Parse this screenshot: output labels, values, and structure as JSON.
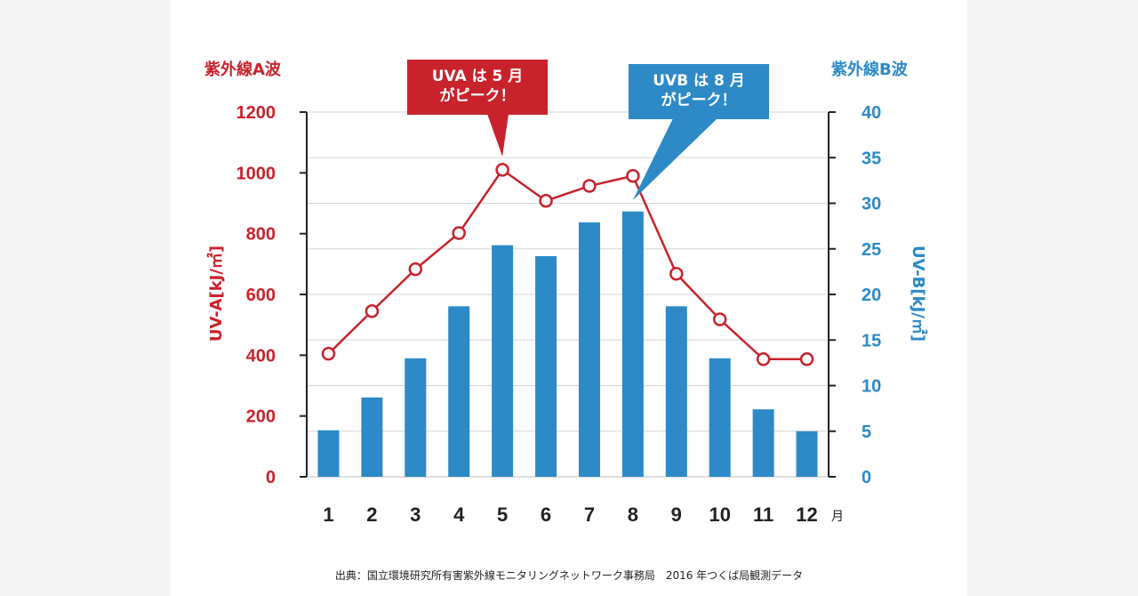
{
  "chart_data": {
    "type": "bar",
    "categories": [
      "1",
      "2",
      "3",
      "4",
      "5",
      "6",
      "7",
      "8",
      "9",
      "10",
      "11",
      "12"
    ],
    "x_unit": "月",
    "series": [
      {
        "name": "UV-B",
        "kind": "bar",
        "axis": "right",
        "color": "#2d8ac7",
        "values": [
          5.1,
          8.7,
          13.0,
          18.7,
          25.4,
          24.2,
          27.9,
          29.1,
          18.7,
          13.0,
          7.4,
          5.0
        ]
      },
      {
        "name": "UV-A",
        "kind": "line",
        "axis": "left",
        "color": "#c8232c",
        "values": [
          405,
          545,
          683,
          802,
          1010,
          908,
          957,
          990,
          668,
          518,
          387,
          387
        ]
      }
    ],
    "left_axis": {
      "header": "紫外線A波",
      "label": "UV-A[kJ/㎡]",
      "ylim": [
        0,
        1200
      ],
      "ticks": [
        "0",
        "200",
        "400",
        "600",
        "800",
        "1000",
        "1200"
      ],
      "color": "#c8232c"
    },
    "right_axis": {
      "header": "紫外線B波",
      "label": "UV-B[kJ/㎡]",
      "ylim": [
        0,
        40
      ],
      "ticks": [
        "0",
        "5",
        "10",
        "15",
        "20",
        "25",
        "30",
        "35",
        "40"
      ],
      "color": "#2d8ac7"
    },
    "annotations": [
      {
        "series": "UV-A",
        "month": "5",
        "lines": [
          "UVA は 5 月",
          "がピーク！"
        ],
        "color": "#c8232c"
      },
      {
        "series": "UV-B",
        "month": "8",
        "lines": [
          "UVB は 8 月",
          "がピーク！"
        ],
        "color": "#2d8ac7"
      }
    ],
    "grid": true
  },
  "source": "出典：国立環境研究所有害紫外線モニタリングネットワーク事務局　2016 年つくば局観測データ"
}
